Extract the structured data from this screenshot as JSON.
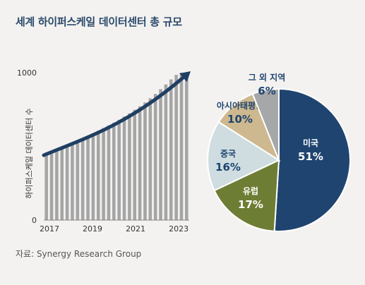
{
  "title": "세계 하이퍼스케일 데이터센터 총 규모",
  "source": "자료: Synergy Research Group",
  "chart_data": [
    {
      "type": "bar",
      "ylabel": "하이퍼스케일 데이터센터 수",
      "ylim": [
        0,
        1000
      ],
      "yticks": [
        "0",
        "1000"
      ],
      "x_tick_labels": [
        "2017",
        "2019",
        "2021",
        "2023"
      ],
      "x_start": 2017.0,
      "x_end": 2023.75,
      "bar_step": 0.25,
      "values": [
        445,
        460,
        476,
        492,
        508,
        524,
        540,
        556,
        572,
        588,
        606,
        624,
        642,
        660,
        680,
        702,
        724,
        748,
        772,
        798,
        826,
        856,
        888,
        920,
        954,
        985,
        1000,
        1000
      ],
      "trend_arrow": [
        [
          2017.0,
          440
        ],
        [
          2019.0,
          560
        ],
        [
          2021.0,
          700
        ],
        [
          2023.75,
          1000
        ]
      ],
      "colors": {
        "bar": "#a5a5a5",
        "arrow": "#1f3f63"
      }
    },
    {
      "type": "pie",
      "slices": [
        {
          "name": "미국",
          "value": 51,
          "label": "51%",
          "color": "#1f4470",
          "text_color": "#ffffff"
        },
        {
          "name": "유럽",
          "value": 17,
          "label": "17%",
          "color": "#6e7d34",
          "text_color": "#ffffff"
        },
        {
          "name": "중국",
          "value": 16,
          "label": "16%",
          "color": "#cfdde1",
          "text_color": "#1f4470"
        },
        {
          "name": "아시아태평양",
          "value": 10,
          "label": "10%",
          "color": "#cdb88f",
          "text_color": "#1f4470"
        },
        {
          "name": "그 외 지역",
          "value": 6,
          "label": "6%",
          "color": "#a6a7a9",
          "text_color": "#1f4470"
        }
      ]
    }
  ]
}
